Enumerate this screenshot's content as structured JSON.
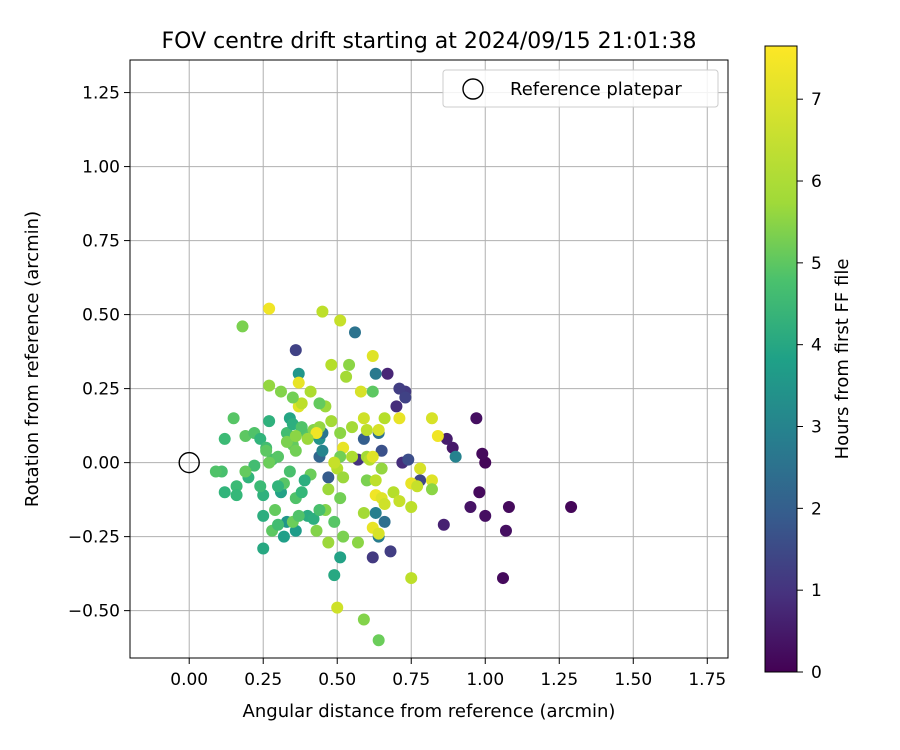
{
  "chart_data": {
    "type": "scatter",
    "title": "FOV centre drift starting at 2024/09/15 21:01:38",
    "xlabel": "Angular distance from reference (arcmin)",
    "ylabel": "Rotation from reference (arcmin)",
    "xlim": [
      -0.2,
      1.82
    ],
    "ylim": [
      -0.66,
      1.36
    ],
    "xticks": [
      "0.00",
      "0.25",
      "0.50",
      "0.75",
      "1.00",
      "1.25",
      "1.50",
      "1.75"
    ],
    "yticks": [
      "−0.50",
      "−0.25",
      "0.00",
      "0.25",
      "0.50",
      "0.75",
      "1.00",
      "1.25"
    ],
    "grid": true,
    "legend": {
      "position": "top-right",
      "entries": [
        "Reference platepar"
      ]
    },
    "reference_point": {
      "x": 0.0,
      "y": 0.0
    },
    "colorbar": {
      "label": "Hours from first FF file",
      "colormap": "viridis",
      "range": [
        0,
        7.65
      ],
      "ticks": [
        "0",
        "1",
        "2",
        "3",
        "4",
        "5",
        "6",
        "7"
      ]
    },
    "points": [
      {
        "x": 1.29,
        "y": -0.15,
        "c": 0.1
      },
      {
        "x": 1.08,
        "y": -0.15,
        "c": 0.2
      },
      {
        "x": 1.07,
        "y": -0.23,
        "c": 0.3
      },
      {
        "x": 1.06,
        "y": -0.39,
        "c": 0.2
      },
      {
        "x": 1.0,
        "y": -0.18,
        "c": 0.3
      },
      {
        "x": 0.95,
        "y": -0.15,
        "c": 0.4
      },
      {
        "x": 0.98,
        "y": -0.1,
        "c": 0.2
      },
      {
        "x": 1.0,
        "y": 0.0,
        "c": 0.1
      },
      {
        "x": 0.99,
        "y": 0.03,
        "c": 0.2
      },
      {
        "x": 0.97,
        "y": 0.15,
        "c": 0.3
      },
      {
        "x": 0.89,
        "y": 0.05,
        "c": 0.5
      },
      {
        "x": 0.87,
        "y": 0.08,
        "c": 0.6
      },
      {
        "x": 0.86,
        "y": -0.21,
        "c": 0.7
      },
      {
        "x": 0.9,
        "y": 0.02,
        "c": 3.4
      },
      {
        "x": 0.73,
        "y": 0.24,
        "c": 1.3
      },
      {
        "x": 0.71,
        "y": 0.25,
        "c": 1.4
      },
      {
        "x": 0.73,
        "y": 0.22,
        "c": 1.5
      },
      {
        "x": 0.7,
        "y": 0.19,
        "c": 1.0
      },
      {
        "x": 0.67,
        "y": 0.3,
        "c": 0.8
      },
      {
        "x": 0.63,
        "y": 0.3,
        "c": 3.1
      },
      {
        "x": 0.56,
        "y": 0.44,
        "c": 2.9
      },
      {
        "x": 0.36,
        "y": 0.38,
        "c": 1.5
      },
      {
        "x": 0.64,
        "y": 0.1,
        "c": 2.8
      },
      {
        "x": 0.72,
        "y": 0.0,
        "c": 1.0
      },
      {
        "x": 0.68,
        "y": -0.3,
        "c": 1.4
      },
      {
        "x": 0.62,
        "y": -0.32,
        "c": 1.3
      },
      {
        "x": 0.66,
        "y": -0.2,
        "c": 2.8
      },
      {
        "x": 0.63,
        "y": -0.17,
        "c": 3.3
      },
      {
        "x": 0.78,
        "y": -0.06,
        "c": 1.6
      },
      {
        "x": 0.74,
        "y": 0.01,
        "c": 1.8
      },
      {
        "x": 0.65,
        "y": 0.04,
        "c": 1.9
      },
      {
        "x": 0.59,
        "y": 0.08,
        "c": 2.3
      },
      {
        "x": 0.57,
        "y": 0.01,
        "c": 1.1
      },
      {
        "x": 0.47,
        "y": -0.05,
        "c": 2.2
      },
      {
        "x": 0.44,
        "y": 0.02,
        "c": 2.5
      },
      {
        "x": 0.45,
        "y": 0.04,
        "c": 3.5
      },
      {
        "x": 0.44,
        "y": 0.08,
        "c": 3.9
      },
      {
        "x": 0.45,
        "y": 0.1,
        "c": 3.0
      },
      {
        "x": 0.49,
        "y": -0.38,
        "c": 4.6
      },
      {
        "x": 0.51,
        "y": -0.32,
        "c": 4.4
      },
      {
        "x": 0.64,
        "y": -0.25,
        "c": 3.2
      },
      {
        "x": 0.25,
        "y": -0.29,
        "c": 4.6
      },
      {
        "x": 0.32,
        "y": -0.25,
        "c": 4.3
      },
      {
        "x": 0.36,
        "y": -0.23,
        "c": 4.2
      },
      {
        "x": 0.33,
        "y": -0.2,
        "c": 4.0
      },
      {
        "x": 0.4,
        "y": -0.18,
        "c": 4.7
      },
      {
        "x": 0.42,
        "y": -0.19,
        "c": 4.8
      },
      {
        "x": 0.31,
        "y": -0.1,
        "c": 4.4
      },
      {
        "x": 0.25,
        "y": -0.18,
        "c": 4.8
      },
      {
        "x": 0.25,
        "y": -0.11,
        "c": 4.9
      },
      {
        "x": 0.24,
        "y": -0.08,
        "c": 5.2
      },
      {
        "x": 0.2,
        "y": -0.05,
        "c": 5.0
      },
      {
        "x": 0.16,
        "y": -0.08,
        "c": 5.2
      },
      {
        "x": 0.12,
        "y": -0.1,
        "c": 5.0
      },
      {
        "x": 0.16,
        "y": -0.11,
        "c": 5.1
      },
      {
        "x": 0.11,
        "y": -0.03,
        "c": 5.4
      },
      {
        "x": 0.09,
        "y": -0.03,
        "c": 5.5
      },
      {
        "x": 0.12,
        "y": 0.08,
        "c": 5.2
      },
      {
        "x": 0.15,
        "y": 0.15,
        "c": 5.6
      },
      {
        "x": 0.19,
        "y": 0.09,
        "c": 5.7
      },
      {
        "x": 0.22,
        "y": 0.1,
        "c": 5.5
      },
      {
        "x": 0.24,
        "y": 0.08,
        "c": 5.0
      },
      {
        "x": 0.26,
        "y": 0.05,
        "c": 5.3
      },
      {
        "x": 0.27,
        "y": 0.14,
        "c": 4.9
      },
      {
        "x": 0.28,
        "y": 0.01,
        "c": 5.4
      },
      {
        "x": 0.3,
        "y": 0.02,
        "c": 5.6
      },
      {
        "x": 0.33,
        "y": 0.1,
        "c": 5.3
      },
      {
        "x": 0.34,
        "y": 0.15,
        "c": 4.5
      },
      {
        "x": 0.35,
        "y": 0.06,
        "c": 5.8
      },
      {
        "x": 0.36,
        "y": 0.04,
        "c": 6.0
      },
      {
        "x": 0.38,
        "y": 0.11,
        "c": 5.2
      },
      {
        "x": 0.4,
        "y": 0.09,
        "c": 5.6
      },
      {
        "x": 0.42,
        "y": 0.11,
        "c": 6.2
      },
      {
        "x": 0.44,
        "y": 0.12,
        "c": 6.4
      },
      {
        "x": 0.46,
        "y": 0.19,
        "c": 6.5
      },
      {
        "x": 0.44,
        "y": 0.2,
        "c": 5.8
      },
      {
        "x": 0.48,
        "y": 0.14,
        "c": 6.6
      },
      {
        "x": 0.48,
        "y": 0.33,
        "c": 6.8
      },
      {
        "x": 0.45,
        "y": 0.51,
        "c": 6.9
      },
      {
        "x": 0.51,
        "y": 0.48,
        "c": 7.0
      },
      {
        "x": 0.27,
        "y": 0.52,
        "c": 7.5
      },
      {
        "x": 0.18,
        "y": 0.46,
        "c": 6.1
      },
      {
        "x": 0.37,
        "y": 0.3,
        "c": 4.0
      },
      {
        "x": 0.37,
        "y": 0.27,
        "c": 7.4
      },
      {
        "x": 0.37,
        "y": 0.19,
        "c": 7.3
      },
      {
        "x": 0.38,
        "y": 0.2,
        "c": 6.9
      },
      {
        "x": 0.41,
        "y": 0.24,
        "c": 6.7
      },
      {
        "x": 0.27,
        "y": 0.26,
        "c": 6.4
      },
      {
        "x": 0.31,
        "y": 0.24,
        "c": 6.2
      },
      {
        "x": 0.35,
        "y": 0.22,
        "c": 6.0
      },
      {
        "x": 0.35,
        "y": 0.13,
        "c": 4.8
      },
      {
        "x": 0.38,
        "y": 0.12,
        "c": 5.5
      },
      {
        "x": 0.54,
        "y": 0.33,
        "c": 6.3
      },
      {
        "x": 0.53,
        "y": 0.29,
        "c": 6.6
      },
      {
        "x": 0.58,
        "y": 0.24,
        "c": 7.2
      },
      {
        "x": 0.62,
        "y": 0.24,
        "c": 5.7
      },
      {
        "x": 0.62,
        "y": 0.36,
        "c": 7.3
      },
      {
        "x": 0.66,
        "y": 0.15,
        "c": 6.8
      },
      {
        "x": 0.71,
        "y": 0.15,
        "c": 7.4
      },
      {
        "x": 0.59,
        "y": 0.15,
        "c": 7.1
      },
      {
        "x": 0.55,
        "y": 0.12,
        "c": 6.6
      },
      {
        "x": 0.6,
        "y": 0.11,
        "c": 6.9
      },
      {
        "x": 0.64,
        "y": 0.11,
        "c": 7.2
      },
      {
        "x": 0.51,
        "y": 0.1,
        "c": 6.3
      },
      {
        "x": 0.52,
        "y": 0.05,
        "c": 7.4
      },
      {
        "x": 0.51,
        "y": 0.02,
        "c": 6.0
      },
      {
        "x": 0.5,
        "y": -0.02,
        "c": 6.8
      },
      {
        "x": 0.49,
        "y": 0.0,
        "c": 7.0
      },
      {
        "x": 0.52,
        "y": -0.05,
        "c": 6.5
      },
      {
        "x": 0.6,
        "y": 0.02,
        "c": 6.6
      },
      {
        "x": 0.61,
        "y": 0.01,
        "c": 6.8
      },
      {
        "x": 0.62,
        "y": 0.02,
        "c": 7.3
      },
      {
        "x": 0.65,
        "y": -0.02,
        "c": 6.4
      },
      {
        "x": 0.6,
        "y": -0.06,
        "c": 6.1
      },
      {
        "x": 0.63,
        "y": -0.06,
        "c": 6.9
      },
      {
        "x": 0.47,
        "y": -0.09,
        "c": 6.5
      },
      {
        "x": 0.51,
        "y": -0.12,
        "c": 6.0
      },
      {
        "x": 0.46,
        "y": -0.16,
        "c": 6.2
      },
      {
        "x": 0.49,
        "y": -0.2,
        "c": 5.6
      },
      {
        "x": 0.43,
        "y": -0.23,
        "c": 6.2
      },
      {
        "x": 0.47,
        "y": -0.27,
        "c": 6.5
      },
      {
        "x": 0.52,
        "y": -0.25,
        "c": 6.1
      },
      {
        "x": 0.57,
        "y": -0.27,
        "c": 6.3
      },
      {
        "x": 0.62,
        "y": -0.22,
        "c": 7.4
      },
      {
        "x": 0.64,
        "y": -0.24,
        "c": 7.2
      },
      {
        "x": 0.59,
        "y": -0.17,
        "c": 6.6
      },
      {
        "x": 0.63,
        "y": -0.11,
        "c": 7.5
      },
      {
        "x": 0.65,
        "y": -0.12,
        "c": 7.3
      },
      {
        "x": 0.66,
        "y": -0.14,
        "c": 7.1
      },
      {
        "x": 0.69,
        "y": -0.1,
        "c": 6.8
      },
      {
        "x": 0.71,
        "y": -0.13,
        "c": 7.0
      },
      {
        "x": 0.75,
        "y": -0.15,
        "c": 6.9
      },
      {
        "x": 0.75,
        "y": -0.07,
        "c": 7.4
      },
      {
        "x": 0.77,
        "y": -0.08,
        "c": 7.0
      },
      {
        "x": 0.78,
        "y": -0.02,
        "c": 7.2
      },
      {
        "x": 0.82,
        "y": -0.06,
        "c": 7.3
      },
      {
        "x": 0.82,
        "y": -0.09,
        "c": 6.3
      },
      {
        "x": 0.84,
        "y": 0.09,
        "c": 7.5
      },
      {
        "x": 0.82,
        "y": 0.15,
        "c": 7.2
      },
      {
        "x": 0.75,
        "y": -0.39,
        "c": 6.9
      },
      {
        "x": 0.5,
        "y": -0.49,
        "c": 7.1
      },
      {
        "x": 0.59,
        "y": -0.53,
        "c": 6.2
      },
      {
        "x": 0.64,
        "y": -0.6,
        "c": 5.9
      },
      {
        "x": 0.36,
        "y": -0.12,
        "c": 5.5
      },
      {
        "x": 0.38,
        "y": -0.1,
        "c": 5.1
      },
      {
        "x": 0.41,
        "y": -0.04,
        "c": 5.9
      },
      {
        "x": 0.32,
        "y": -0.07,
        "c": 5.6
      },
      {
        "x": 0.3,
        "y": -0.08,
        "c": 5.0
      },
      {
        "x": 0.34,
        "y": -0.03,
        "c": 5.4
      },
      {
        "x": 0.39,
        "y": -0.06,
        "c": 4.8
      },
      {
        "x": 0.29,
        "y": -0.16,
        "c": 5.8
      },
      {
        "x": 0.28,
        "y": -0.23,
        "c": 5.7
      },
      {
        "x": 0.3,
        "y": -0.21,
        "c": 5.3
      },
      {
        "x": 0.35,
        "y": -0.2,
        "c": 5.9
      },
      {
        "x": 0.37,
        "y": -0.18,
        "c": 5.5
      },
      {
        "x": 0.44,
        "y": -0.16,
        "c": 5.4
      },
      {
        "x": 0.26,
        "y": 0.04,
        "c": 5.7
      },
      {
        "x": 0.27,
        "y": 0.0,
        "c": 5.9
      },
      {
        "x": 0.22,
        "y": -0.01,
        "c": 5.3
      },
      {
        "x": 0.19,
        "y": -0.03,
        "c": 5.8
      },
      {
        "x": 0.43,
        "y": 0.1,
        "c": 7.5
      },
      {
        "x": 0.33,
        "y": 0.07,
        "c": 6.1
      },
      {
        "x": 0.36,
        "y": 0.09,
        "c": 6.3
      },
      {
        "x": 0.4,
        "y": 0.08,
        "c": 6.5
      },
      {
        "x": 0.55,
        "y": 0.02,
        "c": 6.7
      }
    ]
  }
}
